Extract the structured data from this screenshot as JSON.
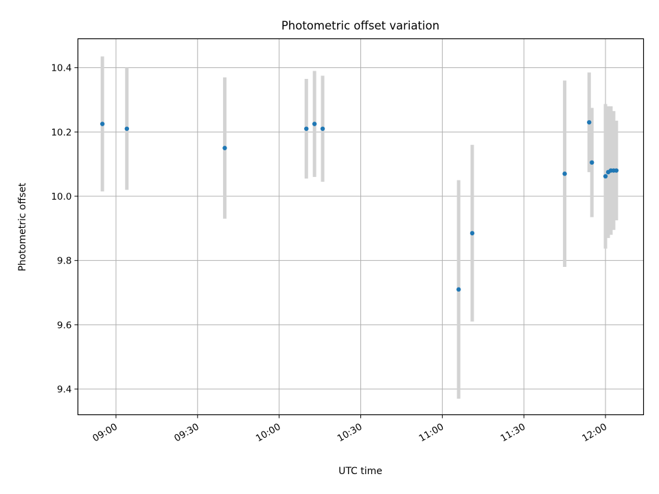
{
  "chart_data": {
    "type": "scatter",
    "title": "Photometric offset variation",
    "xlabel": "UTC time",
    "ylabel": "Photometric offset",
    "x_scale": "time",
    "xlim": [
      "08:46",
      "12:14"
    ],
    "ylim": [
      9.32,
      10.49
    ],
    "x_ticks": [
      "09:00",
      "09:30",
      "10:00",
      "10:30",
      "11:00",
      "11:30",
      "12:00"
    ],
    "y_ticks": [
      "9.4",
      "9.6",
      "9.8",
      "10.0",
      "10.2",
      "10.4"
    ],
    "grid": true,
    "marker_color": "#1f77b4",
    "errorbar_color": "#d3d3d3",
    "points": [
      {
        "x": "08:55",
        "y": 10.225,
        "yerr": 0.21
      },
      {
        "x": "09:04",
        "y": 10.21,
        "yerr": 0.19
      },
      {
        "x": "09:40",
        "y": 10.15,
        "yerr": 0.22
      },
      {
        "x": "10:10",
        "y": 10.21,
        "yerr": 0.155
      },
      {
        "x": "10:13",
        "y": 10.225,
        "yerr": 0.165
      },
      {
        "x": "10:16",
        "y": 10.21,
        "yerr": 0.165
      },
      {
        "x": "11:06",
        "y": 9.71,
        "yerr": 0.34
      },
      {
        "x": "11:11",
        "y": 9.885,
        "yerr": 0.275
      },
      {
        "x": "11:45",
        "y": 10.07,
        "yerr": 0.29
      },
      {
        "x": "11:54",
        "y": 10.23,
        "yerr": 0.155
      },
      {
        "x": "11:55",
        "y": 10.105,
        "yerr": 0.17
      },
      {
        "x": "12:00",
        "y": 10.062,
        "yerr": 0.225
      },
      {
        "x": "12:01",
        "y": 10.075,
        "yerr": 0.205
      },
      {
        "x": "12:02",
        "y": 10.08,
        "yerr": 0.2
      },
      {
        "x": "12:03",
        "y": 10.08,
        "yerr": 0.185
      },
      {
        "x": "12:04",
        "y": 10.08,
        "yerr": 0.155
      }
    ]
  }
}
